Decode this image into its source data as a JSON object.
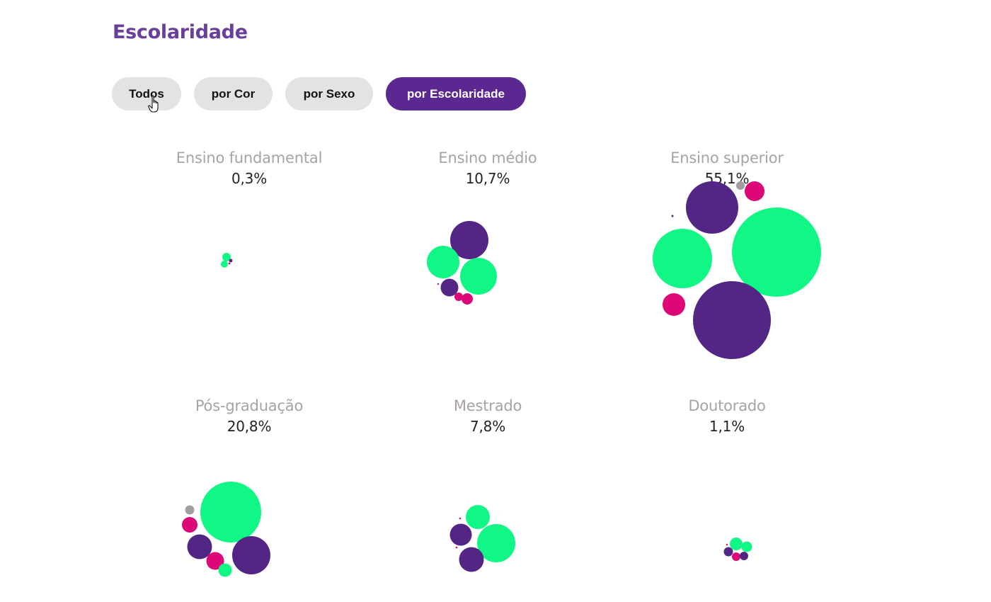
{
  "title": "Escolaridade",
  "colors": {
    "title": "#6a3f9b",
    "active_button": "#5b2790",
    "button_bg": "#e3e3e3",
    "green": "#11f785",
    "purple": "#532685",
    "magenta": "#dc0877",
    "gray": "#9e9e9e"
  },
  "filters": [
    {
      "label": "Todos",
      "active": false
    },
    {
      "label": "por Cor",
      "active": false
    },
    {
      "label": "por Sexo",
      "active": false
    },
    {
      "label": "por Escolaridade",
      "active": true
    }
  ],
  "cursor_icon": "hand-pointer-icon",
  "panels": [
    {
      "label": "Ensino fundamental",
      "percent": "0,3%"
    },
    {
      "label": "Ensino médio",
      "percent": "10,7%"
    },
    {
      "label": "Ensino superior",
      "percent": "55,1%"
    },
    {
      "label": "Pós-graduação",
      "percent": "20,8%"
    },
    {
      "label": "Mestrado",
      "percent": "7,8%"
    },
    {
      "label": "Doutorado",
      "percent": "1,1%"
    }
  ]
}
